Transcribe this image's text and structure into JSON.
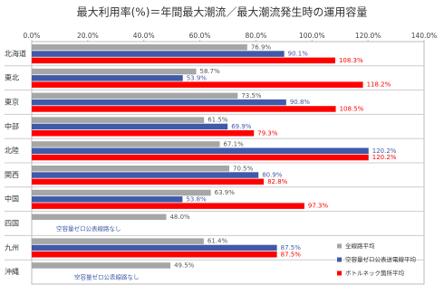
{
  "chart_data": {
    "type": "bar",
    "orientation": "horizontal",
    "title": "最大利用率(%)＝年間最大潮流／最大潮流発生時の運用容量",
    "categories": [
      "北海道",
      "東北",
      "東京",
      "中部",
      "北陸",
      "関西",
      "中国",
      "四国",
      "九州",
      "沖縄"
    ],
    "series": [
      {
        "name": "全線路平均",
        "color": "#a6a6a6",
        "values": [
          76.9,
          58.7,
          73.5,
          61.5,
          67.1,
          70.5,
          63.9,
          48.0,
          61.4,
          49.5
        ],
        "value_labels": [
          "76.9%",
          "58.7%",
          "73.5%",
          "61.5%",
          "67.1%",
          "70.5%",
          "63.9%",
          "48.0%",
          "61.4%",
          "49.5%"
        ]
      },
      {
        "name": "空容量ゼロ公表送電線平均",
        "color": "#3f5aa8",
        "values": [
          90.1,
          53.9,
          90.8,
          69.9,
          120.2,
          80.9,
          53.8,
          null,
          87.5,
          null
        ],
        "value_labels": [
          "90.1%",
          "53.9%",
          "90.8%",
          "69.9%",
          "120.2%",
          "80.9%",
          "53.8%",
          null,
          "87.5%",
          null
        ]
      },
      {
        "name": "ボトルネック箇所平均",
        "color": "#ff0000",
        "values": [
          108.3,
          118.2,
          108.5,
          79.3,
          120.2,
          82.8,
          97.3,
          null,
          87.5,
          null
        ],
        "value_labels": [
          "108.3%",
          "118.2%",
          "108.5%",
          "79.3%",
          "120.2%",
          "82.8%",
          "97.3%",
          null,
          "87.5%",
          null
        ]
      }
    ],
    "annotations": [
      "空容量ゼロ公表線路なし",
      "空容量ゼロ公表線路なし"
    ],
    "xlim": [
      0,
      140
    ],
    "xticks": [
      {
        "value": 0,
        "label": "0.0%"
      },
      {
        "value": 20,
        "label": "20.0%"
      },
      {
        "value": 40,
        "label": "40.0%"
      },
      {
        "value": 60,
        "label": "60.0%"
      },
      {
        "value": 80,
        "label": "80.0%"
      },
      {
        "value": 100,
        "label": "100.0%"
      },
      {
        "value": 120,
        "label": "120.0%"
      },
      {
        "value": 140,
        "label": "140.0%"
      }
    ],
    "grid": false,
    "legend": "lower right"
  }
}
